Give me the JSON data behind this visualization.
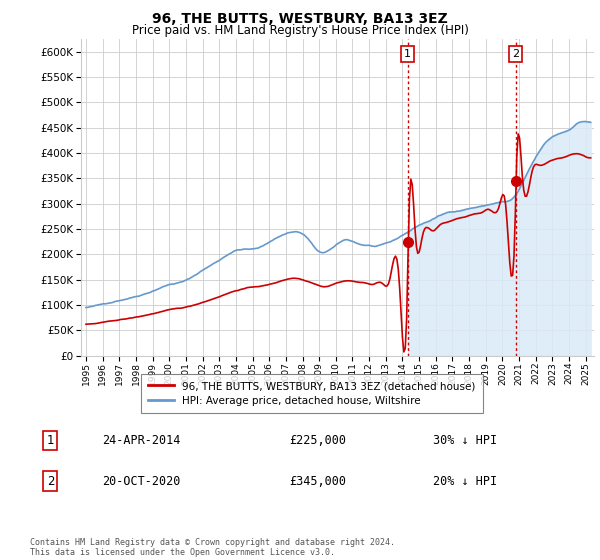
{
  "title": "96, THE BUTTS, WESTBURY, BA13 3EZ",
  "subtitle": "Price paid vs. HM Land Registry's House Price Index (HPI)",
  "yticks": [
    0,
    50000,
    100000,
    150000,
    200000,
    250000,
    300000,
    350000,
    400000,
    450000,
    500000,
    550000,
    600000
  ],
  "xlim_start": 1994.7,
  "xlim_end": 2025.5,
  "ylim": [
    0,
    625000
  ],
  "legend_label_red": "96, THE BUTTS, WESTBURY, BA13 3EZ (detached house)",
  "legend_label_blue": "HPI: Average price, detached house, Wiltshire",
  "note1_num": "1",
  "note1_date": "24-APR-2014",
  "note1_price": "£225,000",
  "note1_hpi": "30% ↓ HPI",
  "note2_num": "2",
  "note2_date": "20-OCT-2020",
  "note2_price": "£345,000",
  "note2_hpi": "20% ↓ HPI",
  "footer": "Contains HM Land Registry data © Crown copyright and database right 2024.\nThis data is licensed under the Open Government Licence v3.0.",
  "color_red": "#cc0000",
  "color_blue": "#6699cc",
  "color_shaded": "#daeaf7",
  "vline_color": "#cc0000",
  "vline_style": ":",
  "sale1_year": 2014.31,
  "sale2_year": 2020.79,
  "sale1_price": 225000,
  "sale2_price": 345000,
  "bg_color": "#f0f4fa"
}
